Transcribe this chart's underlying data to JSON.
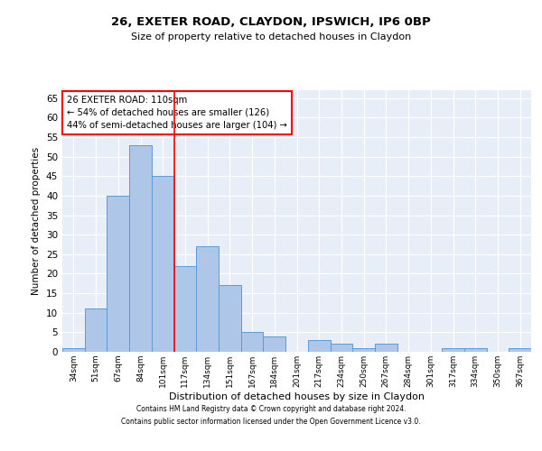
{
  "title_line1": "26, EXETER ROAD, CLAYDON, IPSWICH, IP6 0BP",
  "title_line2": "Size of property relative to detached houses in Claydon",
  "xlabel": "Distribution of detached houses by size in Claydon",
  "ylabel": "Number of detached properties",
  "categories": [
    "34sqm",
    "51sqm",
    "67sqm",
    "84sqm",
    "101sqm",
    "117sqm",
    "134sqm",
    "151sqm",
    "167sqm",
    "184sqm",
    "201sqm",
    "217sqm",
    "234sqm",
    "250sqm",
    "267sqm",
    "284sqm",
    "301sqm",
    "317sqm",
    "334sqm",
    "350sqm",
    "367sqm"
  ],
  "values": [
    1,
    11,
    40,
    53,
    45,
    22,
    27,
    17,
    5,
    4,
    0,
    3,
    2,
    1,
    2,
    0,
    0,
    1,
    1,
    0,
    1
  ],
  "bar_color": "#aec6e8",
  "bar_edge_color": "#5b9bd5",
  "vline_x": 4.5,
  "vline_color": "red",
  "annotation_text": "26 EXETER ROAD: 110sqm\n← 54% of detached houses are smaller (126)\n44% of semi-detached houses are larger (104) →",
  "annotation_box_color": "white",
  "annotation_box_edge_color": "red",
  "ylim": [
    0,
    67
  ],
  "yticks": [
    0,
    5,
    10,
    15,
    20,
    25,
    30,
    35,
    40,
    45,
    50,
    55,
    60,
    65
  ],
  "background_color": "#e8eef7",
  "footer_line1": "Contains HM Land Registry data © Crown copyright and database right 2024.",
  "footer_line2": "Contains public sector information licensed under the Open Government Licence v3.0."
}
